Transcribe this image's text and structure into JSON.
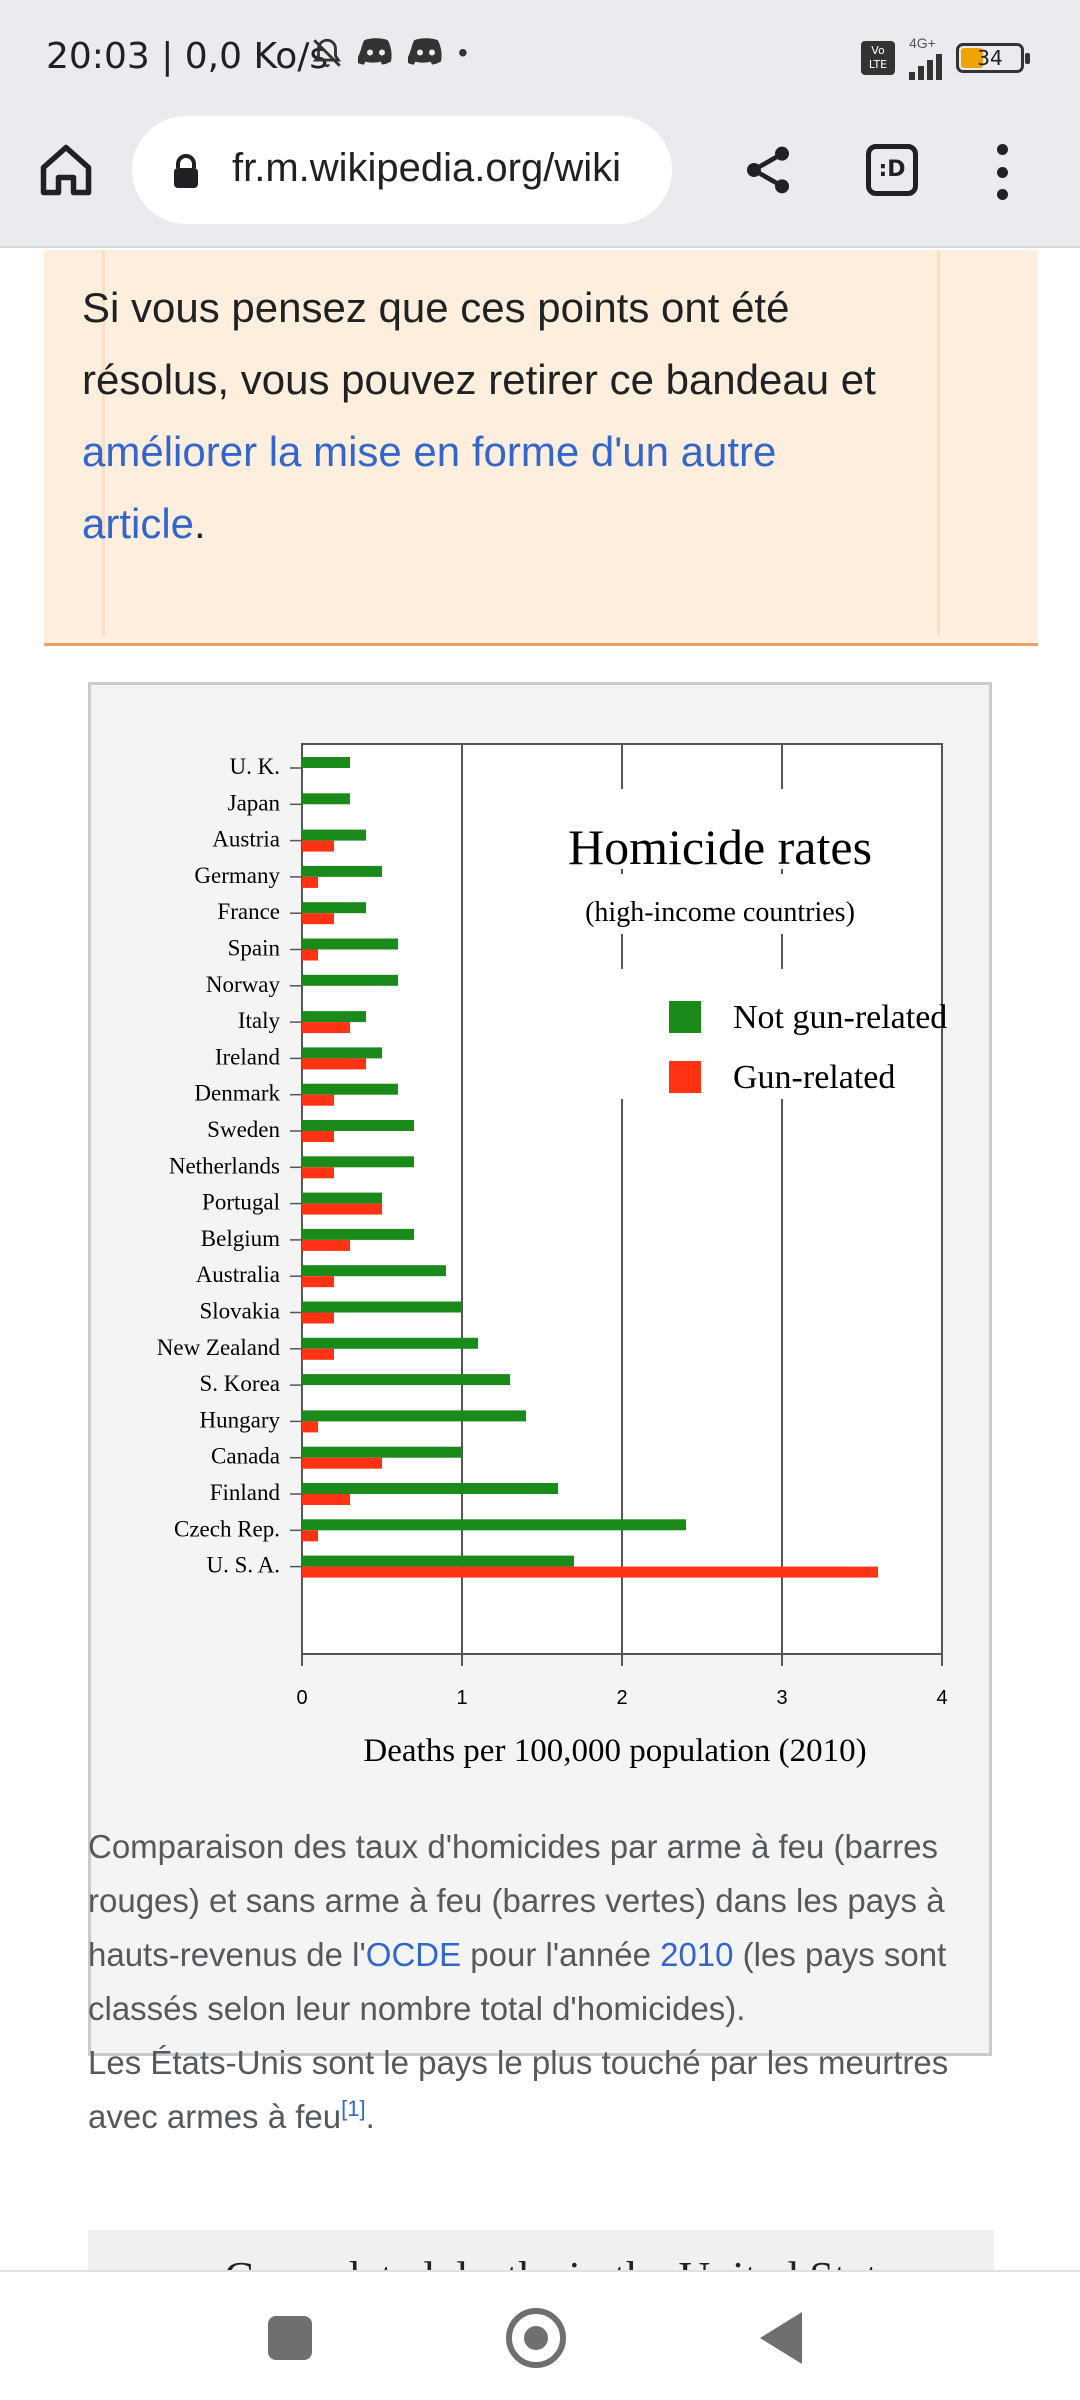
{
  "status_bar": {
    "time": "20:03 | 0,0 Ko/s",
    "icons_left": [
      "bell-off-icon",
      "discord-icon",
      "discord-icon",
      "dot"
    ],
    "volte": "Vo LTE",
    "network": "4G+",
    "battery": "34"
  },
  "browser": {
    "url": "fr.m.wikipedia.org/wiki",
    "tabs_label": ":D"
  },
  "notice": {
    "text_before": "Si vous pensez que ces points ont été résolus, vous pouvez retirer ce bandeau et ",
    "link_text": "améliorer la mise en forme d'un autre article",
    "text_after": "."
  },
  "chart_data": {
    "type": "bar",
    "title": "Homicide rates",
    "subtitle": "(high-income countries)",
    "xlabel": "Deaths per 100,000 population (2010)",
    "ylabel": "",
    "xlim": [
      0,
      4
    ],
    "xticks": [
      "0",
      "1",
      "2",
      "3",
      "4"
    ],
    "grid": true,
    "orientation": "horizontal",
    "legend_position": "top-right",
    "categories": [
      "U. K.",
      "Japan",
      "Austria",
      "Germany",
      "France",
      "Spain",
      "Norway",
      "Italy",
      "Ireland",
      "Denmark",
      "Sweden",
      "Netherlands",
      "Portugal",
      "Belgium",
      "Australia",
      "Slovakia",
      "New Zealand",
      "S. Korea",
      "Hungary",
      "Canada",
      "Finland",
      "Czech Rep.",
      "U. S. A."
    ],
    "series": [
      {
        "name": "Not gun-related",
        "color": "#1a8a1a",
        "values": [
          0.3,
          0.3,
          0.4,
          0.5,
          0.4,
          0.6,
          0.6,
          0.4,
          0.5,
          0.6,
          0.7,
          0.7,
          0.5,
          0.7,
          0.9,
          1.0,
          1.1,
          1.3,
          1.4,
          1.0,
          1.6,
          2.4,
          1.7
        ]
      },
      {
        "name": "Gun-related",
        "color": "#ff3314",
        "values": [
          0.0,
          0.0,
          0.2,
          0.1,
          0.2,
          0.1,
          0.0,
          0.3,
          0.4,
          0.2,
          0.2,
          0.2,
          0.5,
          0.3,
          0.2,
          0.2,
          0.2,
          0.0,
          0.1,
          0.5,
          0.3,
          0.1,
          3.6
        ]
      }
    ]
  },
  "caption": {
    "part1": "Comparaison des taux d'homicides par arme à feu (barres rouges) et sans arme à feu (barres vertes) dans les pays à hauts-revenus de l'",
    "link1": "OCDE",
    "part2": " pour l'année ",
    "link2": "2010",
    "part3": " (les pays sont classés selon leur nombre total d'homicides).",
    "line2": "Les États-Unis sont le pays le plus touché par les meurtres avec armes à feu",
    "ref": "[1]",
    "end": "."
  },
  "next_figure": {
    "title": "Gun-related deaths in the United States"
  }
}
